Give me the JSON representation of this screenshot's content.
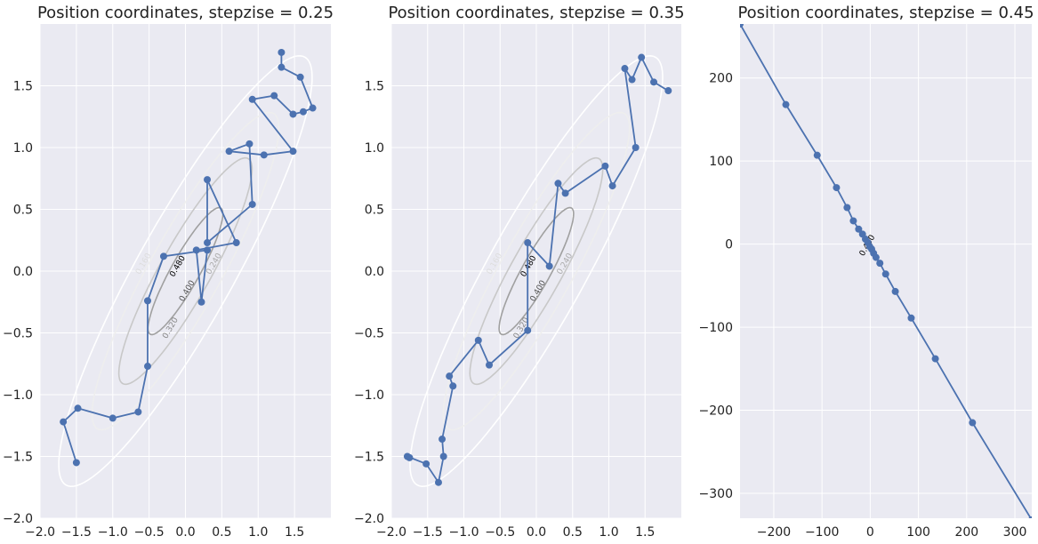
{
  "chart_data": [
    {
      "type": "line",
      "title": "Position coordinates, stepzise = 0.25",
      "xlim": [
        -2.0,
        2.0
      ],
      "ylim": [
        -2.0,
        2.0
      ],
      "xticks": [
        -2.0,
        -1.5,
        -1.0,
        -0.5,
        0.0,
        0.5,
        1.0,
        1.5
      ],
      "xtick_labels": [
        "−2.0",
        "−1.5",
        "−1.0",
        "−0.5",
        "0.0",
        "0.5",
        "1.0",
        "1.5"
      ],
      "yticks": [
        -2.0,
        -1.5,
        -1.0,
        -0.5,
        0.0,
        0.5,
        1.0,
        1.5
      ],
      "ytick_labels": [
        "−2.0",
        "−1.5",
        "−1.0",
        "−0.5",
        "0.0",
        "0.5",
        "1.0",
        "1.5"
      ],
      "grid": true,
      "series_color": "#4c72b0",
      "contour_levels": [
        0.08,
        0.16,
        0.24,
        0.32,
        0.4,
        0.48
      ],
      "contour_labels": [
        {
          "text": "0.160",
          "x": -0.55,
          "y": 0.05,
          "angle": -60,
          "color": "#dddddd"
        },
        {
          "text": "0.240",
          "x": 0.42,
          "y": 0.05,
          "angle": -60,
          "color": "#aaaaaa"
        },
        {
          "text": "0.320",
          "x": -0.18,
          "y": -0.47,
          "angle": -60,
          "color": "#888888"
        },
        {
          "text": "0.400",
          "x": 0.05,
          "y": -0.17,
          "angle": -60,
          "color": "#555555"
        },
        {
          "text": "0.480",
          "x": -0.08,
          "y": 0.03,
          "angle": -60,
          "color": "#000000"
        }
      ],
      "x": [
        1.32,
        1.32,
        1.58,
        1.75,
        1.62,
        1.48,
        1.22,
        0.92,
        1.48,
        1.08,
        0.6,
        0.88,
        0.92,
        0.3,
        0.3,
        0.7,
        0.15,
        0.22,
        0.3,
        -0.3,
        -0.52,
        -0.52,
        -0.65,
        -1.0,
        -1.48,
        -1.68,
        -1.5
      ],
      "y": [
        1.77,
        1.65,
        1.57,
        1.32,
        1.29,
        1.27,
        1.42,
        1.39,
        0.97,
        0.94,
        0.97,
        1.03,
        0.54,
        0.23,
        0.74,
        0.23,
        0.17,
        -0.25,
        0.17,
        0.12,
        -0.24,
        -0.77,
        -1.14,
        -1.19,
        -1.11,
        -1.22,
        -1.55
      ]
    },
    {
      "type": "line",
      "title": "Position coordinates, stepzise = 0.35",
      "xlim": [
        -2.0,
        2.0
      ],
      "ylim": [
        -2.0,
        2.0
      ],
      "xticks": [
        -2.0,
        -1.5,
        -1.0,
        -0.5,
        0.0,
        0.5,
        1.0,
        1.5
      ],
      "xtick_labels": [
        "−2.0",
        "−1.5",
        "−1.0",
        "−0.5",
        "0.0",
        "0.5",
        "1.0",
        "1.5"
      ],
      "yticks": [
        -2.0,
        -1.5,
        -1.0,
        -0.5,
        0.0,
        0.5,
        1.0,
        1.5
      ],
      "ytick_labels": [
        "−2.0",
        "−1.5",
        "−1.0",
        "−0.5",
        "0.0",
        "0.5",
        "1.0",
        "1.5"
      ],
      "grid": true,
      "series_color": "#4c72b0",
      "contour_levels": [
        0.08,
        0.16,
        0.24,
        0.32,
        0.4,
        0.48
      ],
      "contour_labels": [
        {
          "text": "0.160",
          "x": -0.55,
          "y": 0.05,
          "angle": -60,
          "color": "#dddddd"
        },
        {
          "text": "0.240",
          "x": 0.42,
          "y": 0.05,
          "angle": -60,
          "color": "#aaaaaa"
        },
        {
          "text": "0.320",
          "x": -0.18,
          "y": -0.47,
          "angle": -60,
          "color": "#888888"
        },
        {
          "text": "0.400",
          "x": 0.05,
          "y": -0.17,
          "angle": -60,
          "color": "#555555"
        },
        {
          "text": "0.480",
          "x": -0.08,
          "y": 0.03,
          "angle": -60,
          "color": "#000000"
        }
      ],
      "x": [
        1.82,
        1.62,
        1.45,
        1.32,
        1.22,
        1.37,
        1.05,
        0.95,
        0.4,
        0.3,
        0.18,
        -0.12,
        -0.12,
        -0.65,
        -0.8,
        -1.2,
        -1.15,
        -1.3,
        -1.28,
        -1.35,
        -1.52,
        -1.78,
        -1.75
      ],
      "y": [
        1.46,
        1.53,
        1.73,
        1.55,
        1.64,
        1.0,
        0.69,
        0.85,
        0.63,
        0.71,
        0.04,
        0.23,
        -0.48,
        -0.76,
        -0.56,
        -0.85,
        -0.93,
        -1.36,
        -1.5,
        -1.71,
        -1.56,
        -1.5,
        -1.51
      ]
    },
    {
      "type": "line",
      "title": "Position coordinates, stepzise = 0.45",
      "xlim": [
        -270,
        335
      ],
      "ylim": [
        -330,
        265
      ],
      "xticks": [
        -200,
        -100,
        0,
        100,
        200,
        300
      ],
      "xtick_labels": [
        "−200",
        "−100",
        "0",
        "100",
        "200",
        "300"
      ],
      "yticks": [
        -300,
        -200,
        -100,
        0,
        100,
        200
      ],
      "ytick_labels": [
        "−300",
        "−200",
        "−100",
        "0",
        "100",
        "200"
      ],
      "grid": true,
      "series_color": "#4c72b0",
      "contour_levels": [
        0.48
      ],
      "contour_labels": [
        {
          "text": "0.480",
          "x": -2,
          "y": -3,
          "angle": -60,
          "color": "#000000"
        }
      ],
      "x": [
        -270,
        -175,
        -110,
        -70,
        -48,
        -35,
        -24,
        -16,
        -10,
        -5,
        -1,
        3,
        7,
        12,
        20,
        32,
        52,
        85,
        135,
        212,
        335
      ],
      "y": [
        265,
        168,
        107,
        68,
        44,
        28,
        18,
        12,
        6,
        2,
        -3,
        -6,
        -11,
        -16,
        -23,
        -36,
        -57,
        -89,
        -138,
        -215,
        -332
      ]
    }
  ]
}
